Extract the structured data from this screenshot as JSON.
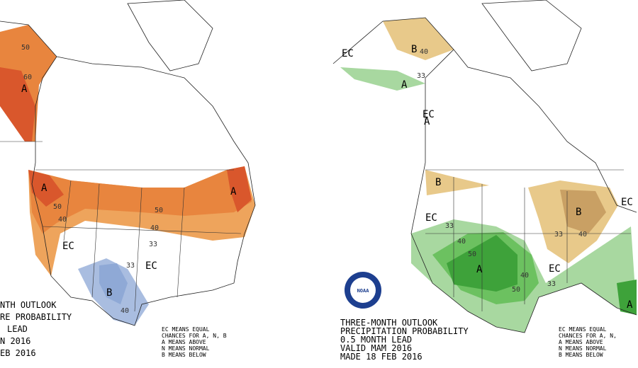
{
  "left_panel": {
    "title_lines": [
      "NTH OUTLOOK",
      "RE PROBABILITY",
      "LEAD",
      "N 2016",
      "EB 2016"
    ],
    "legend_lines": [
      "EC MEANS EQUAL",
      "CHANCES FOR A, N, B",
      "A MEANS ABOVE",
      "N MEANS NORMAL",
      "B MEANS BELOW"
    ],
    "labels": [
      "50",
      "60",
      "A",
      "A",
      "A",
      "50",
      "40",
      "50",
      "40",
      "33",
      "EC",
      "33",
      "EC",
      "B",
      "40"
    ]
  },
  "right_panel": {
    "title_lines": [
      "THREE-MONTH OUTLOOK",
      "PRECIPITATION PROBABILITY",
      "0.5 MONTH LEAD",
      "VALID MAM 2016",
      "MADE 18 FEB 2016"
    ],
    "legend_lines": [
      "EC MEANS EQUAL",
      "CHANCES FOR A, N,",
      "A MEANS ABOVE",
      "N MEANS NORMAL",
      "B MEANS BELOW"
    ],
    "logo": "NOAA",
    "labels": [
      "EC",
      "B",
      "40",
      "33",
      "A",
      "B",
      "EC",
      "33",
      "50",
      "40",
      "A",
      "B",
      "33",
      "40",
      "EC",
      "50",
      "40",
      "33",
      "EC",
      "A",
      "A",
      "EC"
    ]
  }
}
